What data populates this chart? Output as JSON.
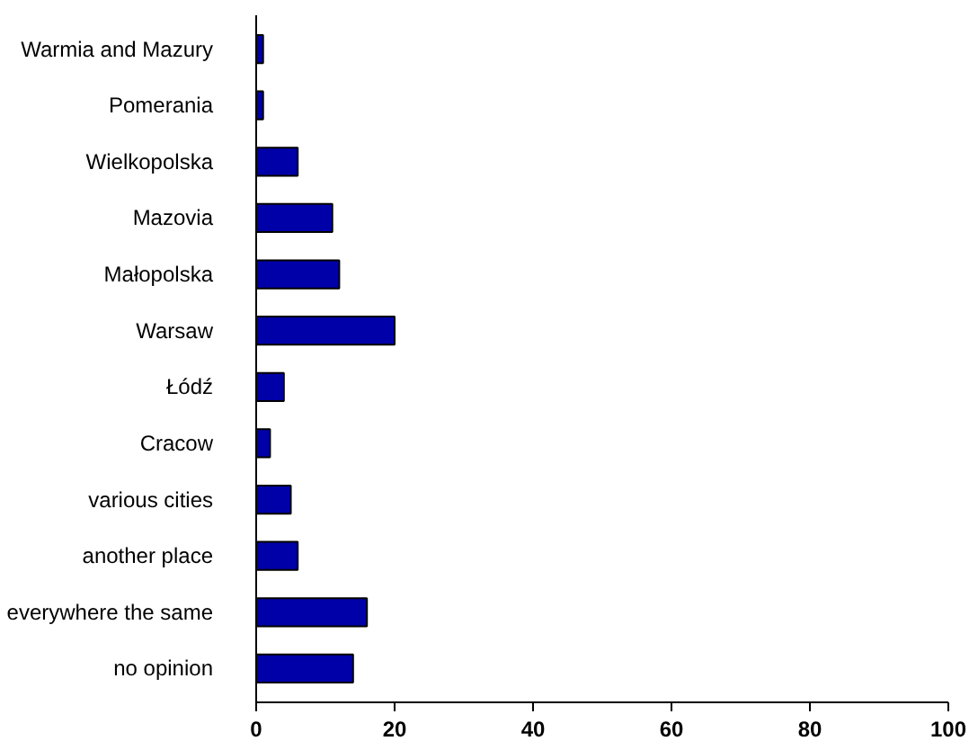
{
  "chart_data": {
    "type": "bar",
    "orientation": "horizontal",
    "categories": [
      "Warmia and Mazury",
      "Pomerania",
      "Wielkopolska",
      "Mazovia",
      "Małopolska",
      "Warsaw",
      "Łódź",
      "Cracow",
      "various cities",
      "another place",
      "everywhere the same",
      "no opinion"
    ],
    "values": [
      1,
      1,
      6,
      11,
      12,
      20,
      4,
      2,
      5,
      6,
      16,
      14
    ],
    "color": "#0000a8",
    "xlim": [
      0,
      100
    ],
    "xticks": [
      0,
      20,
      40,
      60,
      80,
      100
    ],
    "grid": false
  }
}
